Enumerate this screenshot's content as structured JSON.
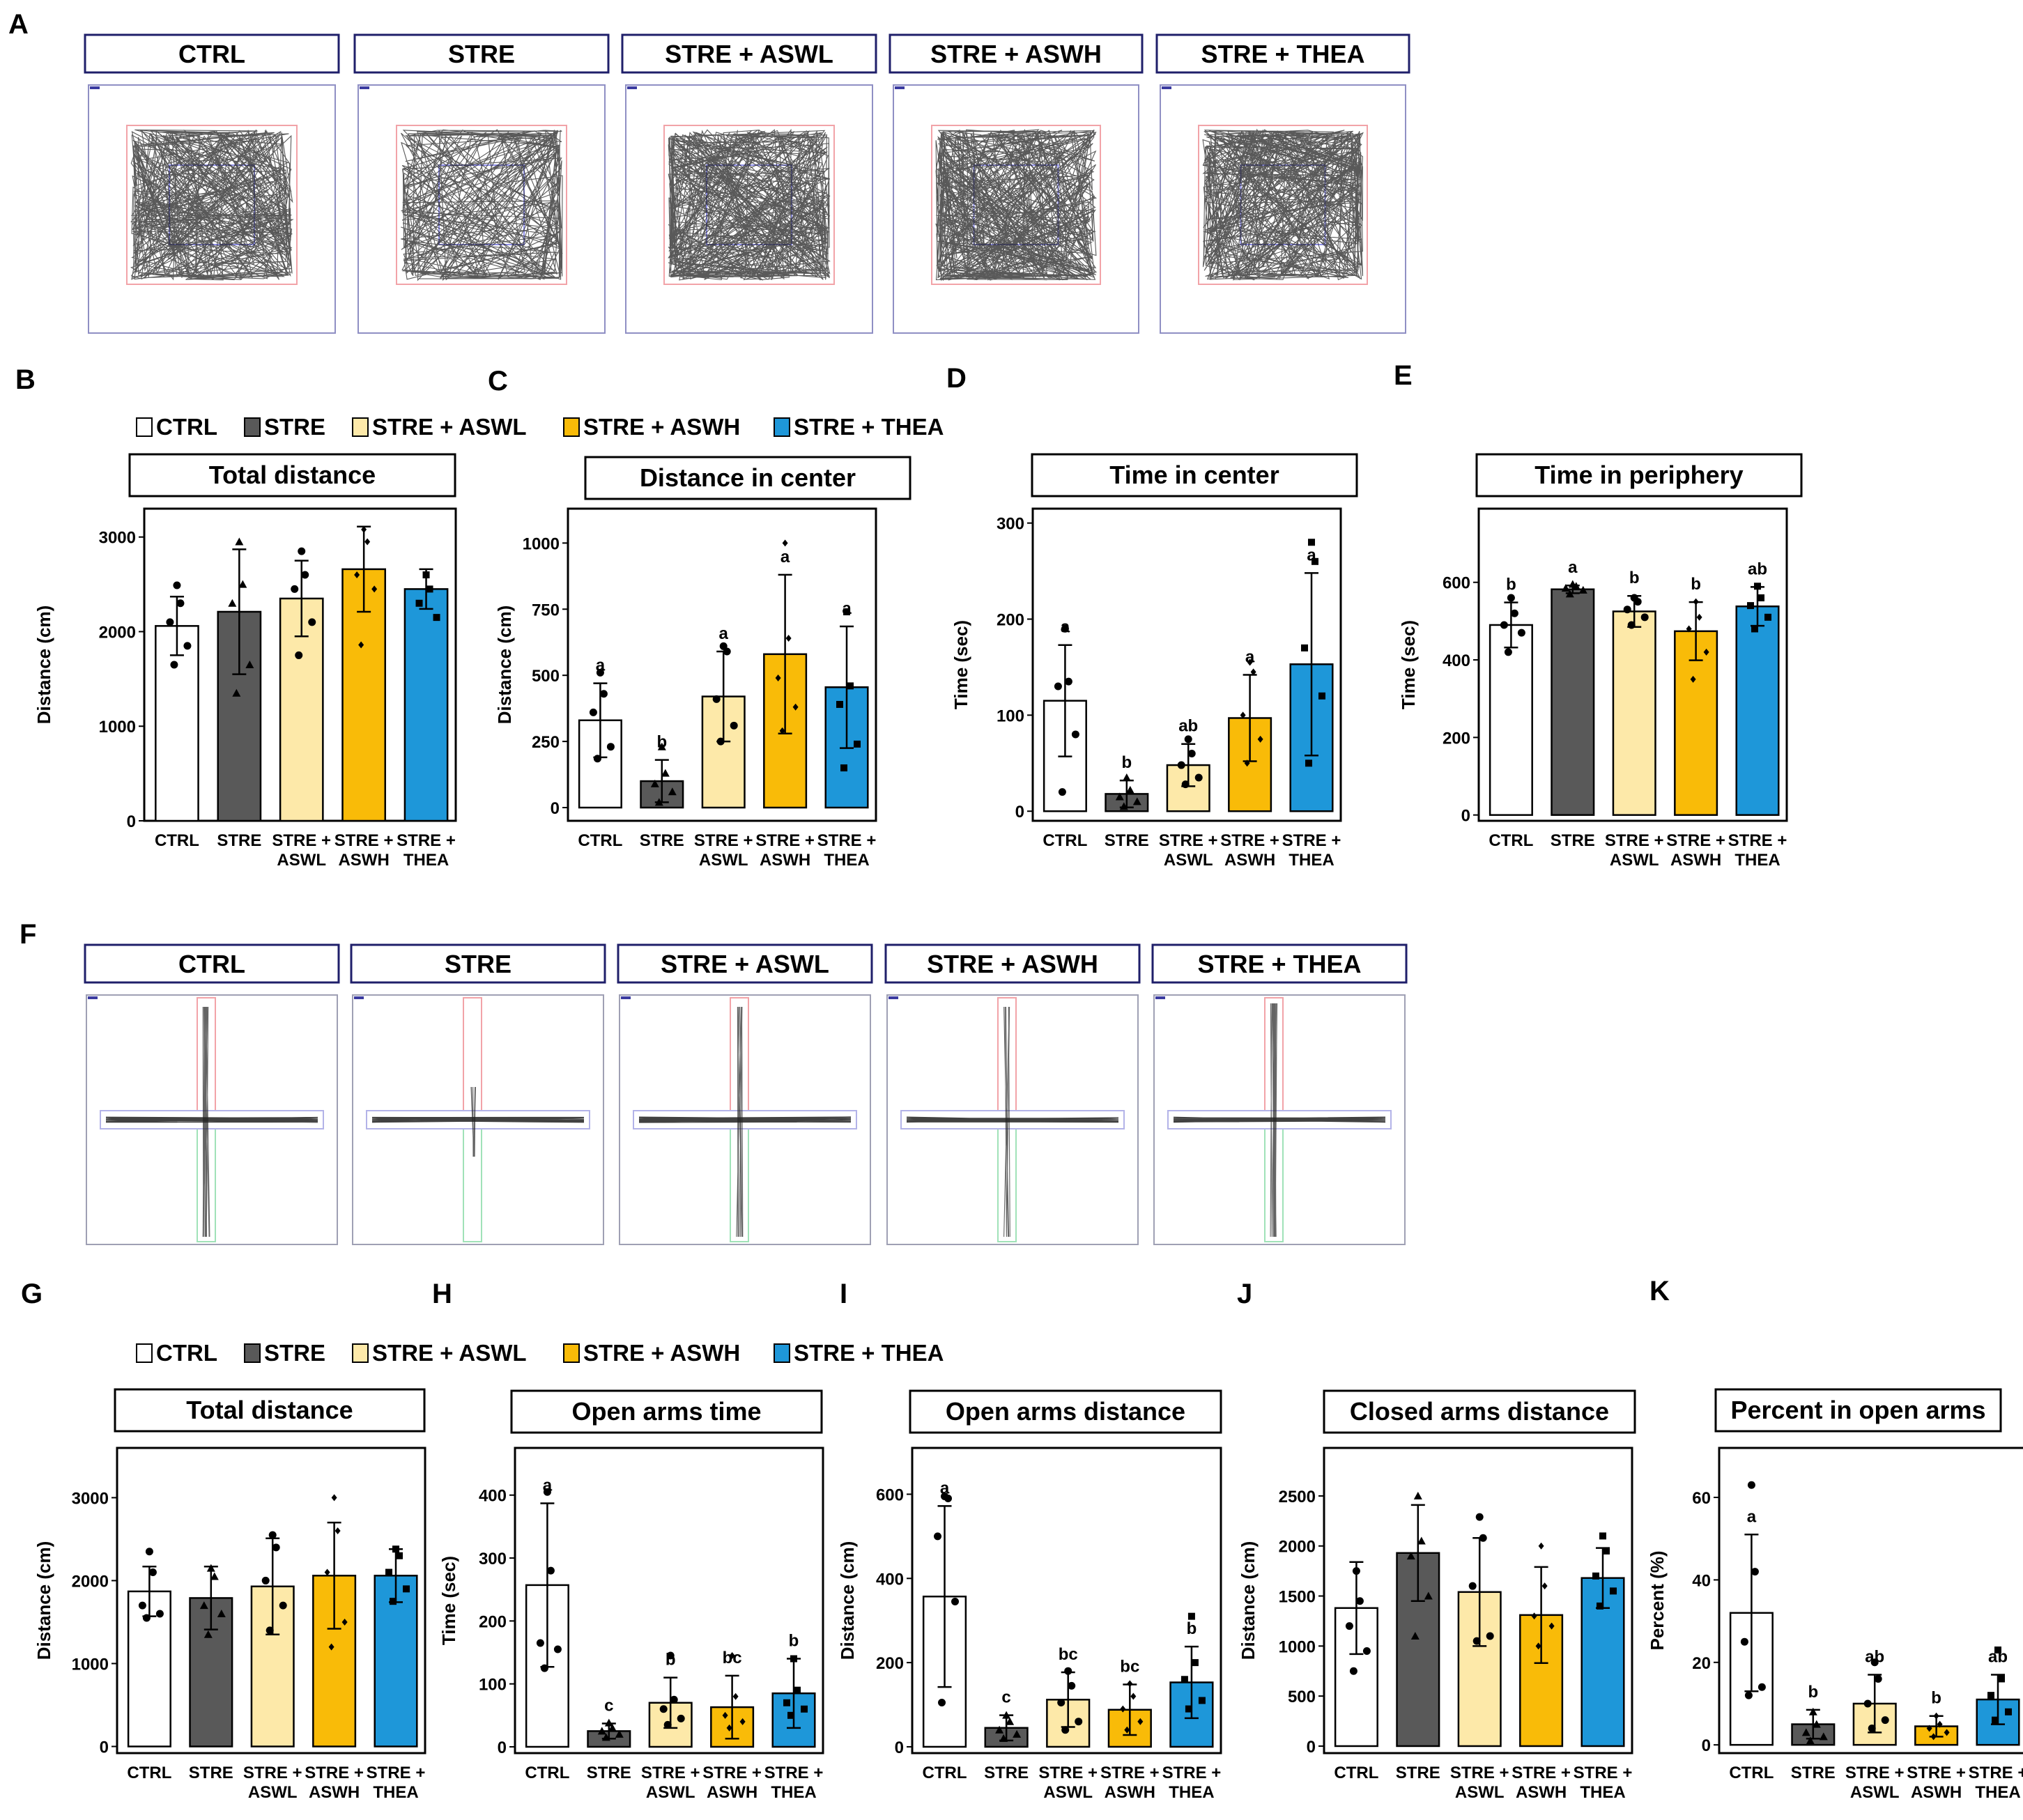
{
  "figure": {
    "panel_labels": [
      "A",
      "B",
      "C",
      "D",
      "E",
      "F",
      "G",
      "H",
      "I",
      "J",
      "K"
    ],
    "groups": [
      "CTRL",
      "STRE",
      "STRE + ASWL",
      "STRE + ASWH",
      "STRE + THEA"
    ],
    "group_colors": [
      "#ffffff",
      "#595959",
      "#fde9a9",
      "#f9bb08",
      "#1e97d9"
    ],
    "legend_items": [
      "CTRL",
      "STRE",
      "STRE + ASWL",
      "STRE + ASWH",
      "STRE + THEA"
    ],
    "tick_categories": [
      [
        "CTRL"
      ],
      [
        "STRE"
      ],
      [
        "STRE +",
        "ASWL"
      ],
      [
        "STRE +",
        "ASWH"
      ],
      [
        "STRE +",
        "THEA"
      ]
    ]
  },
  "chart_data": [
    {
      "id": "B",
      "type": "bar",
      "title": "Total distance",
      "ylabel": "Distance (cm)",
      "ylim": [
        0,
        3300
      ],
      "yticks": [
        0,
        1000,
        2000,
        3000
      ],
      "categories": [
        "CTRL",
        "STRE",
        "STRE + ASWL",
        "STRE + ASWH",
        "STRE + THEA"
      ],
      "values": [
        2060,
        2210,
        2350,
        2660,
        2450
      ],
      "errors": [
        310,
        660,
        400,
        450,
        210
      ],
      "letters": [
        "",
        "",
        "",
        "",
        ""
      ],
      "points": [
        [
          2490,
          2300,
          2100,
          1850,
          1650
        ],
        [
          2950,
          2500,
          2300,
          1650,
          1350
        ],
        [
          2850,
          2600,
          2450,
          2100,
          1750
        ],
        [
          3080,
          2950,
          2600,
          2450,
          1860
        ],
        [
          2600,
          2450,
          2300,
          2150
        ]
      ],
      "marker": [
        "circle",
        "triangle",
        "circle",
        "diamond",
        "square"
      ]
    },
    {
      "id": "C",
      "type": "bar",
      "title": "Distance in center",
      "ylabel": "Distance (cm)",
      "ylim": [
        -50,
        1130
      ],
      "yticks": [
        0,
        250,
        500,
        750,
        1000
      ],
      "categories": [
        "CTRL",
        "STRE",
        "STRE + ASWL",
        "STRE + ASWH",
        "STRE + THEA"
      ],
      "values": [
        330,
        100,
        420,
        580,
        455
      ],
      "errors": [
        140,
        80,
        170,
        300,
        230
      ],
      "letters": [
        "a",
        "b",
        "a",
        "a",
        "a"
      ],
      "points": [
        [
          510,
          430,
          360,
          230,
          185
        ],
        [
          230,
          130,
          90,
          60,
          20
        ],
        [
          610,
          590,
          410,
          310,
          250
        ],
        [
          1000,
          640,
          490,
          380,
          290
        ],
        [
          740,
          460,
          390,
          240,
          150
        ]
      ],
      "marker": [
        "circle",
        "triangle",
        "circle",
        "diamond",
        "square"
      ]
    },
    {
      "id": "D",
      "type": "bar",
      "title": "Time in center",
      "ylabel": "Time (sec)",
      "ylim": [
        -10,
        315
      ],
      "yticks": [
        0,
        100,
        200,
        300
      ],
      "categories": [
        "CTRL",
        "STRE",
        "STRE + ASWL",
        "STRE + ASWH",
        "STRE + THEA"
      ],
      "values": [
        115,
        18,
        48,
        97,
        153
      ],
      "errors": [
        58,
        14,
        22,
        45,
        95
      ],
      "letters": [
        "a",
        "b",
        "ab",
        "a",
        "a"
      ],
      "points": [
        [
          190,
          135,
          130,
          80,
          20
        ],
        [
          35,
          22,
          15,
          10,
          5
        ],
        [
          75,
          60,
          48,
          35,
          28
        ],
        [
          155,
          145,
          100,
          75,
          50
        ],
        [
          280,
          260,
          170,
          120,
          50
        ]
      ],
      "marker": [
        "circle",
        "triangle",
        "circle",
        "diamond",
        "square"
      ]
    },
    {
      "id": "E",
      "type": "bar",
      "title": "Time in periphery",
      "ylabel": "Time (sec)",
      "ylim": [
        -15,
        790
      ],
      "yticks": [
        0,
        200,
        400,
        600
      ],
      "categories": [
        "CTRL",
        "STRE",
        "STRE + ASWL",
        "STRE + ASWH",
        "STRE + THEA"
      ],
      "values": [
        490,
        582,
        525,
        474,
        538
      ],
      "errors": [
        58,
        10,
        40,
        75,
        50
      ],
      "letters": [
        "b",
        "a",
        "b",
        "b",
        "ab"
      ],
      "points": [
        [
          560,
          520,
          490,
          470,
          420
        ],
        [
          595,
          590,
          585,
          580,
          570
        ],
        [
          560,
          550,
          530,
          510,
          490
        ],
        [
          550,
          510,
          480,
          420,
          350
        ],
        [
          590,
          560,
          540,
          510,
          480
        ]
      ],
      "marker": [
        "circle",
        "triangle",
        "circle",
        "diamond",
        "square"
      ]
    },
    {
      "id": "G",
      "type": "bar",
      "title": "Total distance",
      "ylabel": "Distance (cm)",
      "ylim": [
        -80,
        3600
      ],
      "yticks": [
        0,
        1000,
        2000,
        3000
      ],
      "categories": [
        "CTRL",
        "STRE",
        "STRE + ASWL",
        "STRE + ASWH",
        "STRE + THEA"
      ],
      "values": [
        1870,
        1790,
        1930,
        2060,
        2060
      ],
      "errors": [
        300,
        380,
        580,
        640,
        320
      ],
      "letters": [
        "",
        "",
        "",
        "",
        ""
      ],
      "points": [
        [
          2350,
          2100,
          1700,
          1600,
          1550
        ],
        [
          2150,
          2050,
          1700,
          1600,
          1350
        ],
        [
          2550,
          2400,
          2000,
          1700,
          1400
        ],
        [
          3000,
          2600,
          2100,
          1500,
          1200
        ],
        [
          2380,
          2300,
          2100,
          1900,
          1750
        ]
      ],
      "marker": [
        "circle",
        "triangle",
        "circle",
        "diamond",
        "square"
      ]
    },
    {
      "id": "H",
      "type": "bar",
      "title": "Open arms time",
      "ylabel": "Time (sec)",
      "ylim": [
        -10,
        475
      ],
      "yticks": [
        0,
        100,
        200,
        300,
        400
      ],
      "categories": [
        "CTRL",
        "STRE",
        "STRE + ASWL",
        "STRE + ASWH",
        "STRE + THEA"
      ],
      "values": [
        257,
        25,
        70,
        63,
        85
      ],
      "errors": [
        130,
        12,
        40,
        50,
        55
      ],
      "letters": [
        "a",
        "c",
        "b",
        "bc",
        "b"
      ],
      "points": [
        [
          405,
          280,
          165,
          155,
          125
        ],
        [
          38,
          30,
          25,
          20,
          15
        ],
        [
          145,
          75,
          60,
          45,
          35
        ],
        [
          145,
          80,
          50,
          40,
          30
        ],
        [
          140,
          90,
          70,
          60,
          50
        ]
      ],
      "marker": [
        "circle",
        "triangle",
        "circle",
        "diamond",
        "square"
      ]
    },
    {
      "id": "I",
      "type": "bar",
      "title": "Open arms distance",
      "ylabel": "Distance (cm)",
      "ylim": [
        -15,
        710
      ],
      "yticks": [
        0,
        200,
        400,
        600
      ],
      "categories": [
        "CTRL",
        "STRE",
        "STRE + ASWL",
        "STRE + ASWH",
        "STRE + THEA"
      ],
      "values": [
        357,
        45,
        112,
        88,
        153
      ],
      "errors": [
        215,
        30,
        65,
        60,
        85
      ],
      "letters": [
        "a",
        "c",
        "bc",
        "bc",
        "b"
      ],
      "points": [
        [
          595,
          590,
          500,
          345,
          105
        ],
        [
          75,
          60,
          40,
          30,
          20
        ],
        [
          180,
          145,
          105,
          60,
          40
        ],
        [
          150,
          120,
          90,
          60,
          40
        ],
        [
          310,
          200,
          160,
          110,
          90
        ]
      ],
      "marker": [
        "circle",
        "triangle",
        "circle",
        "diamond",
        "square"
      ]
    },
    {
      "id": "J",
      "type": "bar",
      "title": "Closed arms distance",
      "ylabel": "Distance (cm)",
      "ylim": [
        -70,
        2980
      ],
      "yticks": [
        0,
        500,
        1000,
        1500,
        2000,
        2500
      ],
      "categories": [
        "CTRL",
        "STRE",
        "STRE + ASWL",
        "STRE + ASWH",
        "STRE + THEA"
      ],
      "values": [
        1380,
        1930,
        1540,
        1310,
        1680
      ],
      "errors": [
        460,
        480,
        540,
        480,
        300
      ],
      "letters": [
        "",
        "",
        "",
        "",
        ""
      ],
      "points": [
        [
          1750,
          1450,
          1200,
          950,
          750
        ],
        [
          2500,
          2050,
          1900,
          1500,
          1100
        ],
        [
          2290,
          2080,
          1600,
          1100,
          1050
        ],
        [
          2000,
          1600,
          1300,
          1200,
          1000
        ],
        [
          2100,
          1950,
          1700,
          1550,
          1400
        ]
      ],
      "marker": [
        "circle",
        "triangle",
        "circle",
        "diamond",
        "square"
      ]
    },
    {
      "id": "K",
      "type": "bar",
      "title": "Percent in open arms",
      "ylabel": "Percent (%)",
      "ylim": [
        -2,
        72
      ],
      "yticks": [
        0,
        20,
        40,
        60
      ],
      "categories": [
        "CTRL",
        "STRE",
        "STRE + ASWL",
        "STRE + ASWH",
        "STRE + THEA"
      ],
      "values": [
        32,
        5,
        10,
        4.5,
        11
      ],
      "errors": [
        19,
        3.5,
        7,
        2.5,
        6
      ],
      "letters": [
        "a",
        "b",
        "ab",
        "b",
        "ab"
      ],
      "points": [
        [
          63,
          42,
          25,
          14,
          12
        ],
        [
          8,
          5,
          3,
          2,
          1
        ],
        [
          20,
          16,
          10,
          6,
          4
        ],
        [
          7,
          5,
          4,
          3,
          2
        ],
        [
          23,
          16,
          12,
          8,
          6
        ]
      ],
      "marker": [
        "circle",
        "triangle",
        "circle",
        "diamond",
        "square"
      ]
    }
  ]
}
